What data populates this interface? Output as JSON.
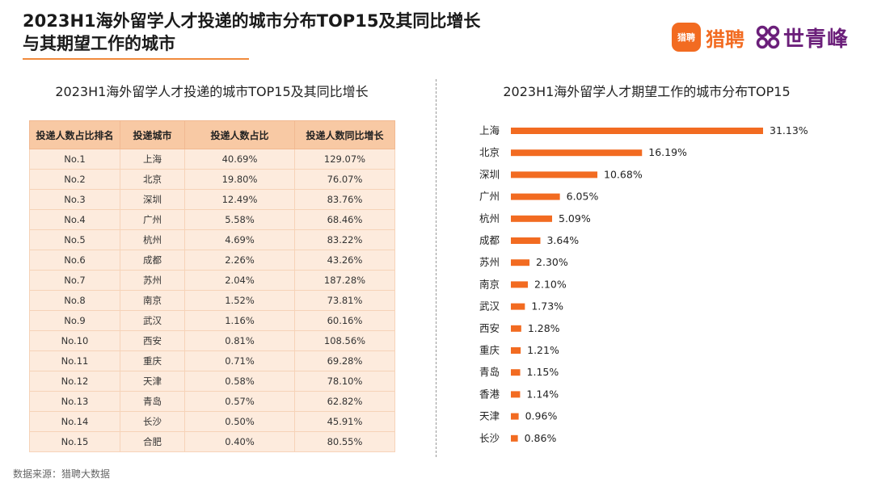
{
  "header": {
    "title_line1": "2023H1海外留学人才投递的城市分布TOP15及其同比增长",
    "title_line2": "与其期望工作的城市",
    "logo_liepin_badge": "猎聘",
    "logo_liepin_text": "猎聘",
    "logo_sq_text": "世青峰"
  },
  "left": {
    "title": "2023H1海外留学人才投递的城市TOP15及其同比增长",
    "columns": [
      "投递人数占比排名",
      "投递城市",
      "投递人数占比",
      "投递人数同比增长"
    ],
    "rows": [
      [
        "No.1",
        "上海",
        "40.69%",
        "129.07%"
      ],
      [
        "No.2",
        "北京",
        "19.80%",
        "76.07%"
      ],
      [
        "No.3",
        "深圳",
        "12.49%",
        "83.76%"
      ],
      [
        "No.4",
        "广州",
        "5.58%",
        "68.46%"
      ],
      [
        "No.5",
        "杭州",
        "4.69%",
        "83.22%"
      ],
      [
        "No.6",
        "成都",
        "2.26%",
        "43.26%"
      ],
      [
        "No.7",
        "苏州",
        "2.04%",
        "187.28%"
      ],
      [
        "No.8",
        "南京",
        "1.52%",
        "73.81%"
      ],
      [
        "No.9",
        "武汉",
        "1.16%",
        "60.16%"
      ],
      [
        "No.10",
        "西安",
        "0.81%",
        "108.56%"
      ],
      [
        "No.11",
        "重庆",
        "0.71%",
        "69.28%"
      ],
      [
        "No.12",
        "天津",
        "0.58%",
        "78.10%"
      ],
      [
        "No.13",
        "青岛",
        "0.57%",
        "62.82%"
      ],
      [
        "No.14",
        "长沙",
        "0.50%",
        "45.91%"
      ],
      [
        "No.15",
        "合肥",
        "0.40%",
        "80.55%"
      ]
    ]
  },
  "chart_data": {
    "type": "bar",
    "orientation": "horizontal",
    "title": "2023H1海外留学人才期望工作的城市分布TOP15",
    "categories": [
      "上海",
      "北京",
      "深圳",
      "广州",
      "杭州",
      "成都",
      "苏州",
      "南京",
      "武汉",
      "西安",
      "重庆",
      "青岛",
      "香港",
      "天津",
      "长沙"
    ],
    "values": [
      31.13,
      16.19,
      10.68,
      6.05,
      5.09,
      3.64,
      2.3,
      2.1,
      1.73,
      1.28,
      1.21,
      1.15,
      1.14,
      0.96,
      0.86
    ],
    "labels": [
      "31.13%",
      "16.19%",
      "10.68%",
      "6.05%",
      "5.09%",
      "3.64%",
      "2.30%",
      "2.10%",
      "1.73%",
      "1.28%",
      "1.21%",
      "1.15%",
      "1.14%",
      "0.96%",
      "0.86%"
    ],
    "xlim": [
      0,
      31.13
    ],
    "grid": false,
    "color": "#f26b21"
  },
  "footer": {
    "source": "数据来源：猎聘大数据"
  }
}
